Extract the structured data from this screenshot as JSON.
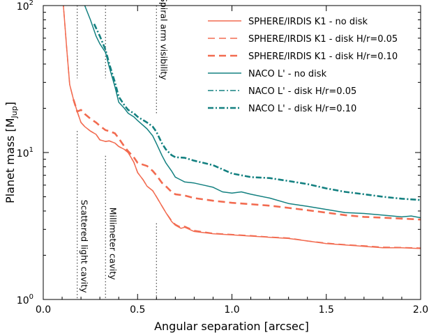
{
  "chart_data": {
    "type": "line",
    "xlabel": "Angular separation [arcsec]",
    "ylabel_main": "Planet mass [M",
    "ylabel_sub": "Jup",
    "ylabel_close": "]",
    "xlim": [
      0,
      2
    ],
    "ylim": [
      1,
      100
    ],
    "yscale": "log",
    "xticks": [
      {
        "value": 0.0,
        "label": "0.0"
      },
      {
        "value": 0.5,
        "label": "0.5"
      },
      {
        "value": 1.0,
        "label": "1.0"
      },
      {
        "value": 1.5,
        "label": "1.5"
      },
      {
        "value": 2.0,
        "label": "2.0"
      }
    ],
    "yticks": [
      {
        "value": 1,
        "base": "10",
        "exp": "0"
      },
      {
        "value": 10,
        "base": "10",
        "exp": "1"
      },
      {
        "value": 100,
        "base": "10",
        "exp": "2"
      }
    ],
    "legend_position": "top-right",
    "colors": {
      "sphere": "#f26b50",
      "naco": "#138080",
      "annotation": "#444444"
    },
    "series": [
      {
        "name": "SPHERE/IRDIS K1 - no disk",
        "color": "#f26b50",
        "dash": "solid",
        "width": 1.5,
        "points": [
          [
            0.1,
            130
          ],
          [
            0.125,
            50
          ],
          [
            0.14,
            29
          ],
          [
            0.16,
            23
          ],
          [
            0.18,
            19
          ],
          [
            0.2,
            16
          ],
          [
            0.22,
            15
          ],
          [
            0.25,
            14
          ],
          [
            0.28,
            13.3
          ],
          [
            0.3,
            12.2
          ],
          [
            0.33,
            11.9
          ],
          [
            0.35,
            12
          ],
          [
            0.38,
            11.6
          ],
          [
            0.4,
            11
          ],
          [
            0.43,
            10.5
          ],
          [
            0.45,
            10
          ],
          [
            0.48,
            8.6
          ],
          [
            0.5,
            7.3
          ],
          [
            0.53,
            6.5
          ],
          [
            0.55,
            5.9
          ],
          [
            0.58,
            5.5
          ],
          [
            0.6,
            5
          ],
          [
            0.63,
            4.3
          ],
          [
            0.65,
            3.9
          ],
          [
            0.68,
            3.4
          ],
          [
            0.7,
            3.2
          ],
          [
            0.73,
            3.05
          ],
          [
            0.75,
            3.1
          ],
          [
            0.8,
            2.9
          ],
          [
            0.9,
            2.8
          ],
          [
            1.0,
            2.75
          ],
          [
            1.1,
            2.7
          ],
          [
            1.2,
            2.65
          ],
          [
            1.3,
            2.6
          ],
          [
            1.4,
            2.5
          ],
          [
            1.5,
            2.4
          ],
          [
            1.6,
            2.35
          ],
          [
            1.7,
            2.3
          ],
          [
            1.8,
            2.25
          ],
          [
            1.9,
            2.25
          ],
          [
            2.0,
            2.22
          ]
        ]
      },
      {
        "name": "SPHERE/IRDIS K1 - disk H/r=0.05",
        "color": "#f26b50",
        "dash": "10,6",
        "width": 1.5,
        "points": [
          [
            0.1,
            130
          ],
          [
            0.125,
            50
          ],
          [
            0.14,
            29
          ],
          [
            0.16,
            23
          ],
          [
            0.18,
            19
          ],
          [
            0.2,
            16
          ],
          [
            0.22,
            15
          ],
          [
            0.25,
            14
          ],
          [
            0.28,
            13.3
          ],
          [
            0.3,
            12.2
          ],
          [
            0.33,
            11.9
          ],
          [
            0.35,
            12
          ],
          [
            0.38,
            11.6
          ],
          [
            0.4,
            11
          ],
          [
            0.43,
            10.5
          ],
          [
            0.45,
            10
          ],
          [
            0.48,
            8.6
          ],
          [
            0.5,
            7.3
          ],
          [
            0.53,
            6.5
          ],
          [
            0.55,
            5.9
          ],
          [
            0.58,
            5.5
          ],
          [
            0.6,
            5
          ],
          [
            0.63,
            4.3
          ],
          [
            0.65,
            3.9
          ],
          [
            0.68,
            3.45
          ],
          [
            0.7,
            3.25
          ],
          [
            0.73,
            3.1
          ],
          [
            0.75,
            3.15
          ],
          [
            0.8,
            2.95
          ],
          [
            0.9,
            2.82
          ],
          [
            1.0,
            2.77
          ],
          [
            1.1,
            2.72
          ],
          [
            1.2,
            2.66
          ],
          [
            1.3,
            2.62
          ],
          [
            1.4,
            2.5
          ],
          [
            1.5,
            2.42
          ],
          [
            1.6,
            2.36
          ],
          [
            1.7,
            2.32
          ],
          [
            1.8,
            2.27
          ],
          [
            1.9,
            2.26
          ],
          [
            2.0,
            2.24
          ]
        ]
      },
      {
        "name": "SPHERE/IRDIS K1 - disk H/r=0.10",
        "color": "#f26b50",
        "dash": "10,6",
        "width": 2.6,
        "points": [
          [
            0.16,
            23
          ],
          [
            0.18,
            19
          ],
          [
            0.2,
            19.5
          ],
          [
            0.22,
            18.3
          ],
          [
            0.25,
            17
          ],
          [
            0.28,
            16
          ],
          [
            0.3,
            15.2
          ],
          [
            0.33,
            14.2
          ],
          [
            0.35,
            14
          ],
          [
            0.38,
            13.5
          ],
          [
            0.4,
            12.5
          ],
          [
            0.43,
            11
          ],
          [
            0.45,
            10.2
          ],
          [
            0.48,
            9.3
          ],
          [
            0.5,
            8.5
          ],
          [
            0.55,
            8.1
          ],
          [
            0.58,
            7.5
          ],
          [
            0.6,
            7
          ],
          [
            0.63,
            6.2
          ],
          [
            0.65,
            5.9
          ],
          [
            0.68,
            5.4
          ],
          [
            0.7,
            5.2
          ],
          [
            0.75,
            5.1
          ],
          [
            0.8,
            4.9
          ],
          [
            0.9,
            4.7
          ],
          [
            1.0,
            4.55
          ],
          [
            1.1,
            4.45
          ],
          [
            1.2,
            4.35
          ],
          [
            1.3,
            4.2
          ],
          [
            1.4,
            4.05
          ],
          [
            1.5,
            3.9
          ],
          [
            1.6,
            3.75
          ],
          [
            1.7,
            3.65
          ],
          [
            1.8,
            3.6
          ],
          [
            1.9,
            3.55
          ],
          [
            2.0,
            3.5
          ]
        ]
      },
      {
        "name": "NACO L' - no disk",
        "color": "#138080",
        "dash": "solid",
        "width": 1.5,
        "points": [
          [
            0.22,
            100
          ],
          [
            0.25,
            80
          ],
          [
            0.28,
            62
          ],
          [
            0.3,
            55
          ],
          [
            0.33,
            48
          ],
          [
            0.35,
            38
          ],
          [
            0.38,
            28
          ],
          [
            0.4,
            22
          ],
          [
            0.43,
            20
          ],
          [
            0.45,
            18.5
          ],
          [
            0.48,
            17.5
          ],
          [
            0.5,
            16.5
          ],
          [
            0.55,
            14.5
          ],
          [
            0.58,
            13
          ],
          [
            0.6,
            11.5
          ],
          [
            0.63,
            9.5
          ],
          [
            0.65,
            8.5
          ],
          [
            0.68,
            7.5
          ],
          [
            0.7,
            6.8
          ],
          [
            0.73,
            6.5
          ],
          [
            0.75,
            6.3
          ],
          [
            0.8,
            6.2
          ],
          [
            0.85,
            6
          ],
          [
            0.9,
            5.8
          ],
          [
            0.95,
            5.4
          ],
          [
            1.0,
            5.3
          ],
          [
            1.05,
            5.4
          ],
          [
            1.1,
            5.2
          ],
          [
            1.2,
            4.9
          ],
          [
            1.3,
            4.5
          ],
          [
            1.4,
            4.3
          ],
          [
            1.5,
            4.1
          ],
          [
            1.6,
            3.9
          ],
          [
            1.7,
            3.85
          ],
          [
            1.8,
            3.75
          ],
          [
            1.9,
            3.65
          ],
          [
            1.95,
            3.7
          ],
          [
            2.0,
            3.6
          ]
        ]
      },
      {
        "name": "NACO L' - disk H/r=0.05",
        "color": "#138080",
        "dash": "8,3,2,3",
        "width": 1.5,
        "points": [
          [
            0.27,
            75
          ],
          [
            0.3,
            62
          ],
          [
            0.33,
            50
          ],
          [
            0.35,
            40
          ],
          [
            0.38,
            30
          ],
          [
            0.4,
            24
          ],
          [
            0.43,
            21
          ],
          [
            0.45,
            19.5
          ],
          [
            0.48,
            18.5
          ],
          [
            0.5,
            17.5
          ],
          [
            0.55,
            16
          ],
          [
            0.58,
            15
          ],
          [
            0.6,
            13.8
          ],
          [
            0.63,
            11.5
          ],
          [
            0.65,
            10.5
          ],
          [
            0.68,
            9.6
          ],
          [
            0.7,
            9.3
          ],
          [
            0.75,
            9.2
          ],
          [
            0.8,
            8.8
          ],
          [
            0.9,
            8.2
          ],
          [
            1.0,
            7.2
          ],
          [
            1.1,
            6.8
          ],
          [
            1.2,
            6.7
          ],
          [
            1.3,
            6.4
          ],
          [
            1.4,
            6.1
          ],
          [
            1.5,
            5.7
          ],
          [
            1.6,
            5.4
          ],
          [
            1.7,
            5.2
          ],
          [
            1.8,
            5.0
          ],
          [
            1.9,
            4.85
          ],
          [
            2.0,
            4.75
          ]
        ]
      },
      {
        "name": "NACO L' - disk H/r=0.10",
        "color": "#138080",
        "dash": "8,3,2,3",
        "width": 2.6,
        "points": [
          [
            0.27,
            75
          ],
          [
            0.3,
            62
          ],
          [
            0.33,
            50
          ],
          [
            0.35,
            40
          ],
          [
            0.38,
            30
          ],
          [
            0.4,
            24
          ],
          [
            0.43,
            21
          ],
          [
            0.45,
            19.5
          ],
          [
            0.48,
            18.5
          ],
          [
            0.5,
            17.5
          ],
          [
            0.55,
            16
          ],
          [
            0.58,
            15
          ],
          [
            0.6,
            13.8
          ],
          [
            0.63,
            11.5
          ],
          [
            0.65,
            10.5
          ],
          [
            0.68,
            9.6
          ],
          [
            0.7,
            9.3
          ],
          [
            0.75,
            9.2
          ],
          [
            0.8,
            8.8
          ],
          [
            0.9,
            8.2
          ],
          [
            1.0,
            7.2
          ],
          [
            1.1,
            6.8
          ],
          [
            1.2,
            6.7
          ],
          [
            1.3,
            6.4
          ],
          [
            1.4,
            6.1
          ],
          [
            1.5,
            5.7
          ],
          [
            1.6,
            5.4
          ],
          [
            1.7,
            5.2
          ],
          [
            1.8,
            5.0
          ],
          [
            1.9,
            4.85
          ],
          [
            2.0,
            4.75
          ]
        ]
      }
    ],
    "vlines": [
      {
        "x": 0.18,
        "label": "Scattered light cavity",
        "segments": [
          [
            32,
            100
          ],
          [
            1,
            14
          ]
        ],
        "label_y": 2.3
      },
      {
        "x": 0.33,
        "label": "Millimeter cavity",
        "segments": [
          [
            32,
            100
          ],
          [
            1,
            9.5
          ]
        ],
        "label_y": 2.4
      },
      {
        "x": 0.6,
        "label": "Spiral arm visibility",
        "segments": [
          [
            18,
            100
          ],
          [
            1,
            3.3
          ]
        ],
        "label_y": 60
      }
    ]
  }
}
